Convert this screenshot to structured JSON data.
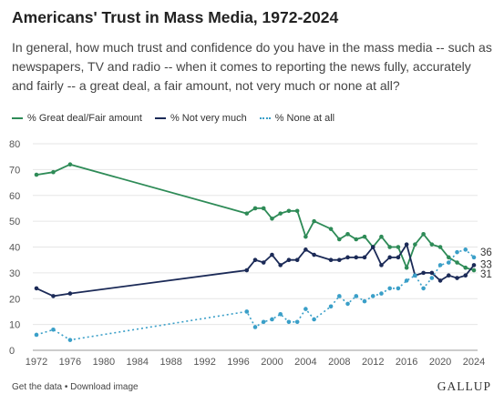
{
  "header": {
    "title": "Americans' Trust in Mass Media, 1972-2024",
    "subtitle": "In general, how much trust and confidence do you have in the mass media -- such as newspapers, TV and radio -- when it comes to reporting the news fully, accurately and fairly -- a great deal, a fair amount, not very much or none at all?"
  },
  "footer": {
    "links": "Get the data • Download image",
    "brand": "GALLUP"
  },
  "colors": {
    "great": "#2e8b57",
    "notvery": "#1b2a57",
    "none": "#3a9fc8",
    "grid": "#e6e6e6"
  },
  "chart_data": {
    "type": "line",
    "title": "Americans' Trust in Mass Media, 1972-2024",
    "xlim": [
      1972,
      2024
    ],
    "ylim": [
      0,
      80
    ],
    "x_ticks": [
      1972,
      1976,
      1980,
      1984,
      1988,
      1992,
      1996,
      2000,
      2004,
      2008,
      2012,
      2016,
      2020,
      2024
    ],
    "y_ticks": [
      0,
      10,
      20,
      30,
      40,
      50,
      60,
      70,
      80
    ],
    "grid": true,
    "legend_position": "top",
    "series": [
      {
        "name": "% Great deal/Fair amount",
        "style": "solid",
        "color": "#2e8b57",
        "x": [
          1972,
          1974,
          1976,
          1997,
          1998,
          1999,
          2000,
          2001,
          2002,
          2003,
          2004,
          2005,
          2007,
          2008,
          2009,
          2010,
          2011,
          2012,
          2013,
          2014,
          2015,
          2016,
          2017,
          2018,
          2019,
          2020,
          2021,
          2022,
          2023,
          2024
        ],
        "y": [
          68,
          69,
          72,
          53,
          55,
          55,
          51,
          53,
          54,
          54,
          44,
          50,
          47,
          43,
          45,
          43,
          44,
          40,
          44,
          40,
          40,
          32,
          41,
          45,
          41,
          40,
          36,
          34,
          32,
          31
        ],
        "end_label": "31"
      },
      {
        "name": "% Not very much",
        "style": "solid",
        "color": "#1b2a57",
        "x": [
          1972,
          1974,
          1976,
          1997,
          1998,
          1999,
          2000,
          2001,
          2002,
          2003,
          2004,
          2005,
          2007,
          2008,
          2009,
          2010,
          2011,
          2012,
          2013,
          2014,
          2015,
          2016,
          2017,
          2018,
          2019,
          2020,
          2021,
          2022,
          2023,
          2024
        ],
        "y": [
          24,
          21,
          22,
          31,
          35,
          34,
          37,
          33,
          35,
          35,
          39,
          37,
          35,
          35,
          36,
          36,
          36,
          40,
          33,
          36,
          36,
          41,
          29,
          30,
          30,
          27,
          29,
          28,
          29,
          33
        ],
        "end_label": "33"
      },
      {
        "name": "% None at all",
        "style": "dotted",
        "color": "#3a9fc8",
        "x": [
          1972,
          1974,
          1976,
          1997,
          1998,
          1999,
          2000,
          2001,
          2002,
          2003,
          2004,
          2005,
          2007,
          2008,
          2009,
          2010,
          2011,
          2012,
          2013,
          2014,
          2015,
          2016,
          2017,
          2018,
          2019,
          2020,
          2021,
          2022,
          2023,
          2024
        ],
        "y": [
          6,
          8,
          4,
          15,
          9,
          11,
          12,
          14,
          11,
          11,
          16,
          12,
          17,
          21,
          18,
          21,
          19,
          21,
          22,
          24,
          24,
          27,
          29,
          24,
          28,
          33,
          34,
          38,
          39,
          36
        ],
        "end_label": "36"
      }
    ]
  }
}
